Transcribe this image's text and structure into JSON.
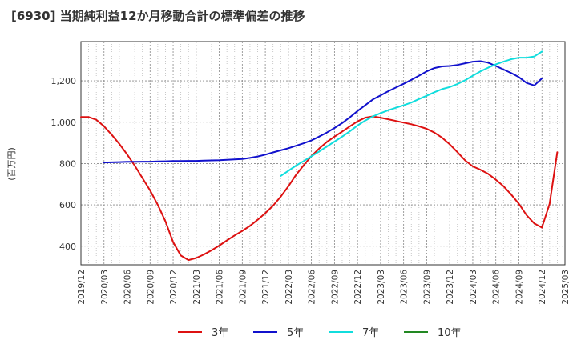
{
  "chart_data": {
    "type": "line",
    "title": "[6930]  当期純利益12か月移動合計の標準偏差の推移",
    "ylabel": "(百万円)",
    "xlabel": "",
    "ylim": [
      310,
      1390
    ],
    "yticks": [
      400,
      600,
      800,
      1000,
      1200
    ],
    "ytick_labels": [
      "400",
      "600",
      "800",
      "1,000",
      "1,200"
    ],
    "x_ticks": [
      "2019/12",
      "2020/03",
      "2020/06",
      "2020/09",
      "2020/12",
      "2021/03",
      "2021/06",
      "2021/09",
      "2021/12",
      "2022/03",
      "2022/06",
      "2022/09",
      "2022/12",
      "2023/03",
      "2023/06",
      "2023/09",
      "2023/12",
      "2024/03",
      "2024/06",
      "2024/09",
      "2024/12",
      "2025/03"
    ],
    "x_start": "2019/12",
    "grid": true,
    "legend_position": "bottom",
    "series": [
      {
        "name": "3年",
        "color": "#dd1111",
        "start": "2019/12",
        "values": [
          1025,
          1025,
          1012,
          980,
          940,
          895,
          845,
          790,
          730,
          670,
          600,
          520,
          420,
          355,
          333,
          343,
          360,
          380,
          403,
          428,
          452,
          474,
          498,
          528,
          560,
          596,
          640,
          690,
          745,
          792,
          836,
          872,
          904,
          930,
          955,
          980,
          1004,
          1022,
          1028,
          1022,
          1014,
          1006,
          998,
          990,
          980,
          968,
          950,
          925,
          893,
          855,
          815,
          786,
          770,
          750,
          722,
          690,
          650,
          605,
          550,
          510,
          490,
          605,
          855
        ]
      },
      {
        "name": "5年",
        "color": "#1111cc",
        "start": "2020/03",
        "values": [
          805,
          806,
          807,
          808,
          808,
          809,
          809,
          810,
          811,
          812,
          812,
          813,
          813,
          814,
          815,
          816,
          818,
          820,
          822,
          827,
          834,
          843,
          854,
          864,
          874,
          886,
          898,
          912,
          930,
          950,
          972,
          996,
          1024,
          1054,
          1082,
          1110,
          1130,
          1150,
          1168,
          1186,
          1205,
          1225,
          1246,
          1262,
          1270,
          1272,
          1277,
          1285,
          1293,
          1295,
          1288,
          1272,
          1255,
          1238,
          1218,
          1190,
          1178,
          1212
        ]
      },
      {
        "name": "7年",
        "color": "#11dddd",
        "start": "2022/02",
        "values": [
          740,
          765,
          790,
          812,
          835,
          858,
          882,
          906,
          930,
          956,
          984,
          1008,
          1028,
          1044,
          1058,
          1070,
          1082,
          1095,
          1112,
          1128,
          1145,
          1160,
          1170,
          1185,
          1203,
          1225,
          1246,
          1264,
          1280,
          1293,
          1305,
          1312,
          1312,
          1318,
          1342
        ]
      },
      {
        "name": "10年",
        "color": "#228822",
        "start": "2019/12",
        "values": []
      }
    ]
  }
}
